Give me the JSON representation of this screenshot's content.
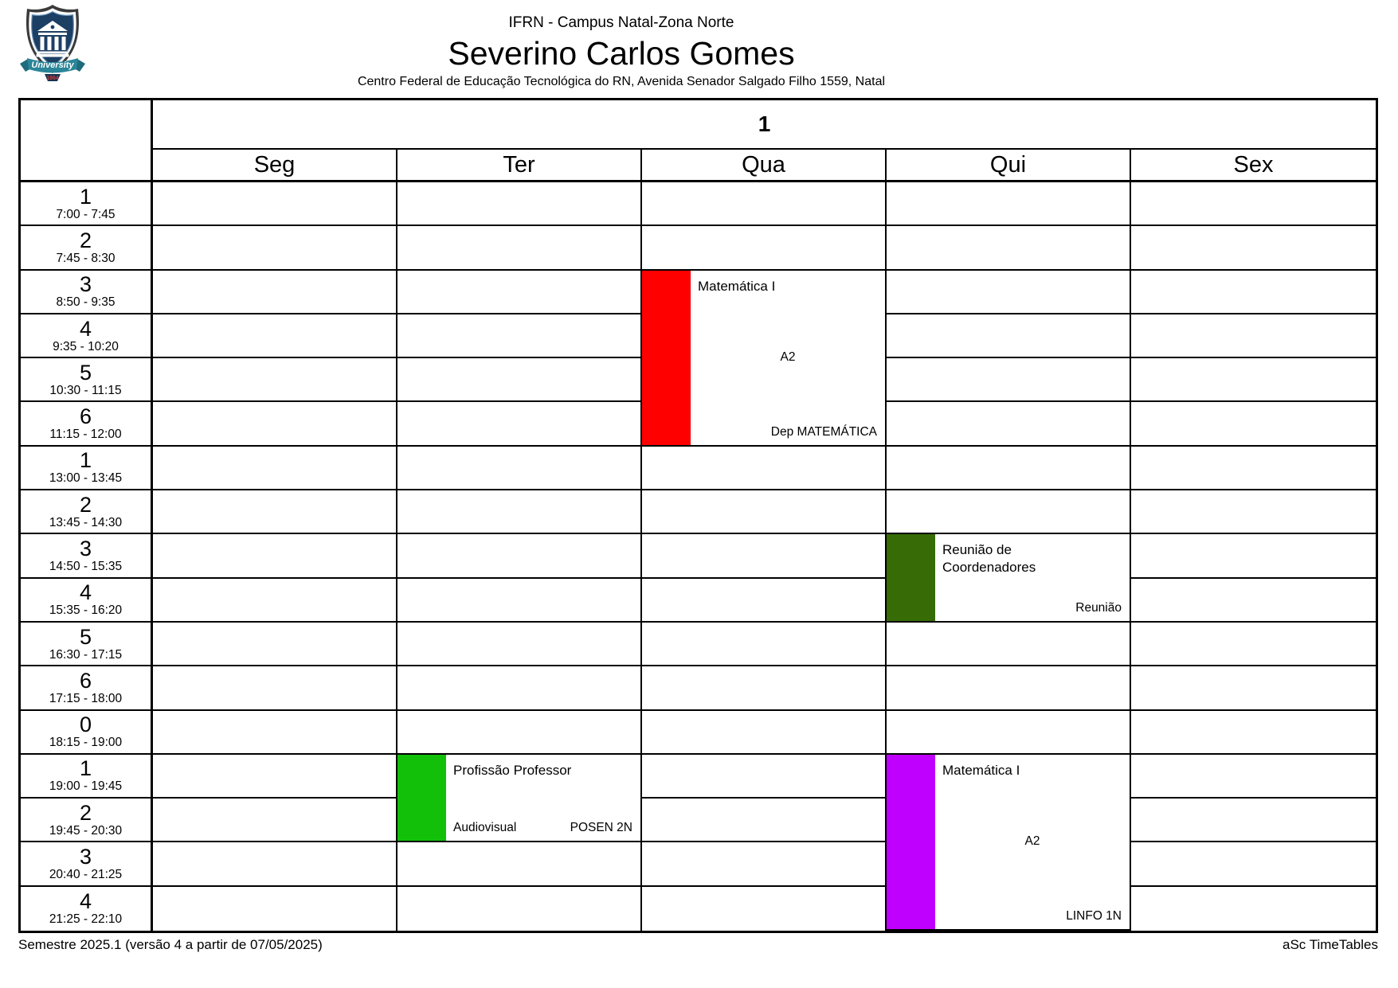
{
  "header": {
    "institution": "IFRN - Campus Natal-Zona Norte",
    "teacher": "Severino Carlos Gomes",
    "address": "Centro Federal de Educação Tecnológica do RN, Avenida Senador Salgado Filho 1559, Natal",
    "logo": {
      "banner": "University",
      "year": "1864"
    }
  },
  "timetable": {
    "group_header": "1",
    "days": [
      "Seg",
      "Ter",
      "Qua",
      "Qui",
      "Sex"
    ],
    "periods": [
      {
        "num": "1",
        "time": "7:00 - 7:45"
      },
      {
        "num": "2",
        "time": "7:45 - 8:30"
      },
      {
        "num": "3",
        "time": "8:50 - 9:35"
      },
      {
        "num": "4",
        "time": "9:35 - 10:20"
      },
      {
        "num": "5",
        "time": "10:30 - 11:15"
      },
      {
        "num": "6",
        "time": "11:15 - 12:00"
      },
      {
        "num": "1",
        "time": "13:00 - 13:45"
      },
      {
        "num": "2",
        "time": "13:45 - 14:30"
      },
      {
        "num": "3",
        "time": "14:50 - 15:35"
      },
      {
        "num": "4",
        "time": "15:35 - 16:20"
      },
      {
        "num": "5",
        "time": "16:30 - 17:15"
      },
      {
        "num": "6",
        "time": "17:15 - 18:00"
      },
      {
        "num": "0",
        "time": "18:15 - 19:00"
      },
      {
        "num": "1",
        "time": "19:00 - 19:45"
      },
      {
        "num": "2",
        "time": "19:45 - 20:30"
      },
      {
        "num": "3",
        "time": "20:40 - 21:25"
      },
      {
        "num": "4",
        "time": "21:25 - 22:10"
      }
    ],
    "events": [
      {
        "title": "Matemática I",
        "center": "A2",
        "bottom_left": "",
        "bottom_right": "Dep MATEMÁTICA",
        "color": "#ff0000",
        "day": 2,
        "row": 2,
        "span": 4
      },
      {
        "title": "Reunião de Coordenadores",
        "center": "",
        "bottom_left": "",
        "bottom_right": "Reunião",
        "color": "#366b06",
        "day": 3,
        "row": 8,
        "span": 2
      },
      {
        "title": "Profissão Professor",
        "center": "",
        "bottom_left": "Audiovisual",
        "bottom_right": "POSEN 2N",
        "color": "#12c00a",
        "day": 1,
        "row": 13,
        "span": 2
      },
      {
        "title": "Matemática I",
        "center": "A2",
        "bottom_left": "",
        "bottom_right": "LINFO 1N",
        "color": "#bf00ff",
        "day": 3,
        "row": 13,
        "span": 4
      }
    ]
  },
  "footer": {
    "left": "Semestre 2025.1 (versão 4 a partir de 07/05/2025)",
    "right": "aSc TimeTables"
  }
}
